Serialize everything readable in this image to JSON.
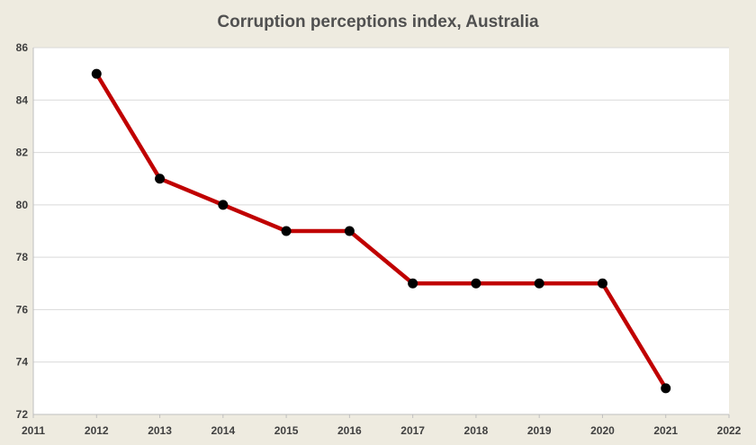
{
  "chart_data": {
    "type": "line",
    "title": "Corruption perceptions index, Australia",
    "xlabel": "",
    "ylabel": "",
    "xlim": [
      2011,
      2022
    ],
    "ylim": [
      72,
      86
    ],
    "x_ticks": [
      2011,
      2012,
      2013,
      2014,
      2015,
      2016,
      2017,
      2018,
      2019,
      2020,
      2021,
      2022
    ],
    "y_ticks": [
      72,
      74,
      76,
      78,
      80,
      82,
      84,
      86
    ],
    "grid": true,
    "legend": "none",
    "series": [
      {
        "x": [
          2012,
          2013,
          2014,
          2015,
          2016,
          2017,
          2018,
          2019,
          2020,
          2021
        ],
        "values": [
          85,
          81,
          80,
          79,
          79,
          77,
          77,
          77,
          77,
          73
        ],
        "line_color": "#c00000",
        "marker_color": "#000000"
      }
    ],
    "colors": {
      "background": "#eeebe0",
      "plot_background": "#ffffff",
      "grid": "#d9d9d9",
      "axis": "#bfbfbf"
    }
  }
}
